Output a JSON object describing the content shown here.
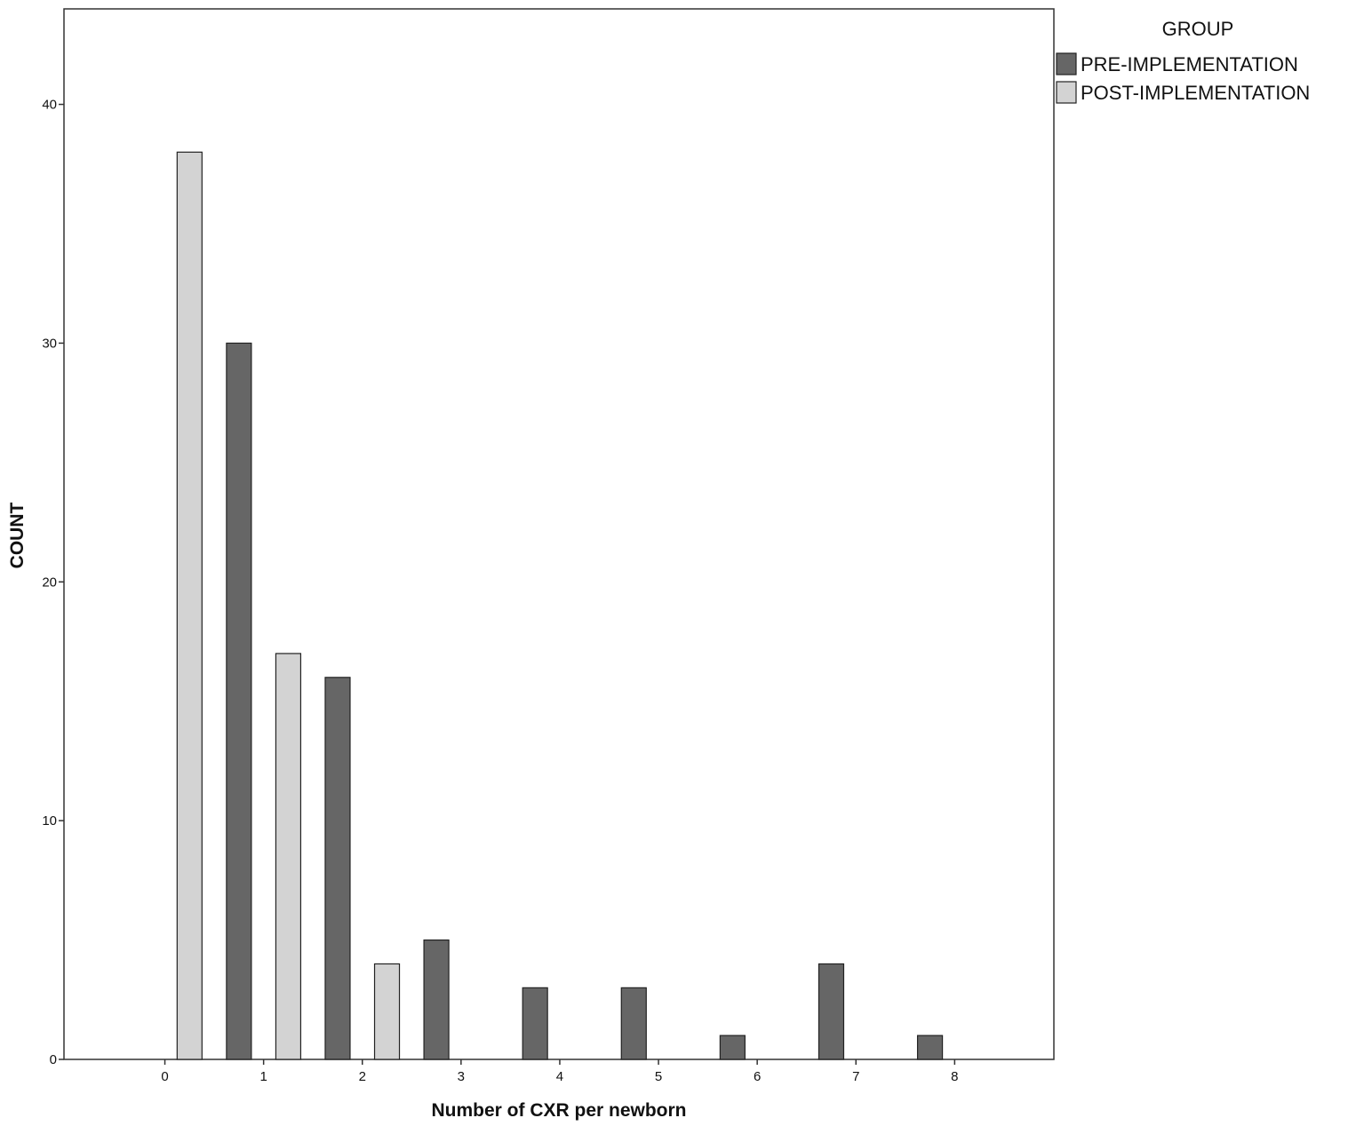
{
  "chart_data": {
    "type": "bar",
    "categories": [
      "0",
      "1",
      "2",
      "3",
      "4",
      "5",
      "6",
      "7",
      "8"
    ],
    "series": [
      {
        "name": "PRE-IMPLEMENTATION",
        "color": "#666666",
        "values": [
          0,
          30,
          16,
          5,
          3,
          3,
          1,
          4,
          1
        ]
      },
      {
        "name": "POST-IMPLEMENTATION",
        "color": "#d3d3d3",
        "values": [
          38,
          17,
          4,
          0,
          0,
          0,
          0,
          0,
          0
        ]
      }
    ],
    "xlabel": "Number of CXR per newborn",
    "ylabel": "COUNT",
    "ylim": [
      0,
      44
    ],
    "yticks": [
      0,
      10,
      20,
      30,
      40
    ],
    "legend": {
      "title": "GROUP",
      "placement": "right"
    },
    "grid": false
  }
}
